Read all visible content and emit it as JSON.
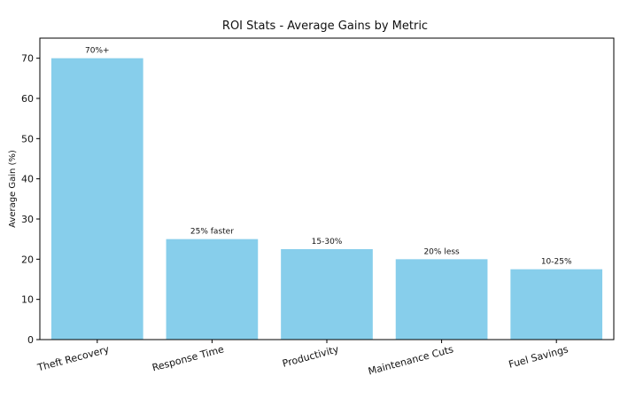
{
  "chart_data": {
    "type": "bar",
    "title": "ROI Stats - Average Gains by Metric",
    "xlabel": "",
    "ylabel": "Average Gain (%)",
    "categories": [
      "Theft Recovery",
      "Response Time",
      "Productivity",
      "Maintenance Cuts",
      "Fuel Savings"
    ],
    "values": [
      70,
      25,
      22.5,
      20,
      17.5
    ],
    "data_labels": [
      "70%+",
      "25% faster",
      "15-30%",
      "20% less",
      "10-25%"
    ],
    "ylim": [
      0,
      75
    ],
    "yticks": [
      0,
      10,
      20,
      30,
      40,
      50,
      60,
      70
    ],
    "grid": false,
    "bar_color": "#87CEEB"
  }
}
